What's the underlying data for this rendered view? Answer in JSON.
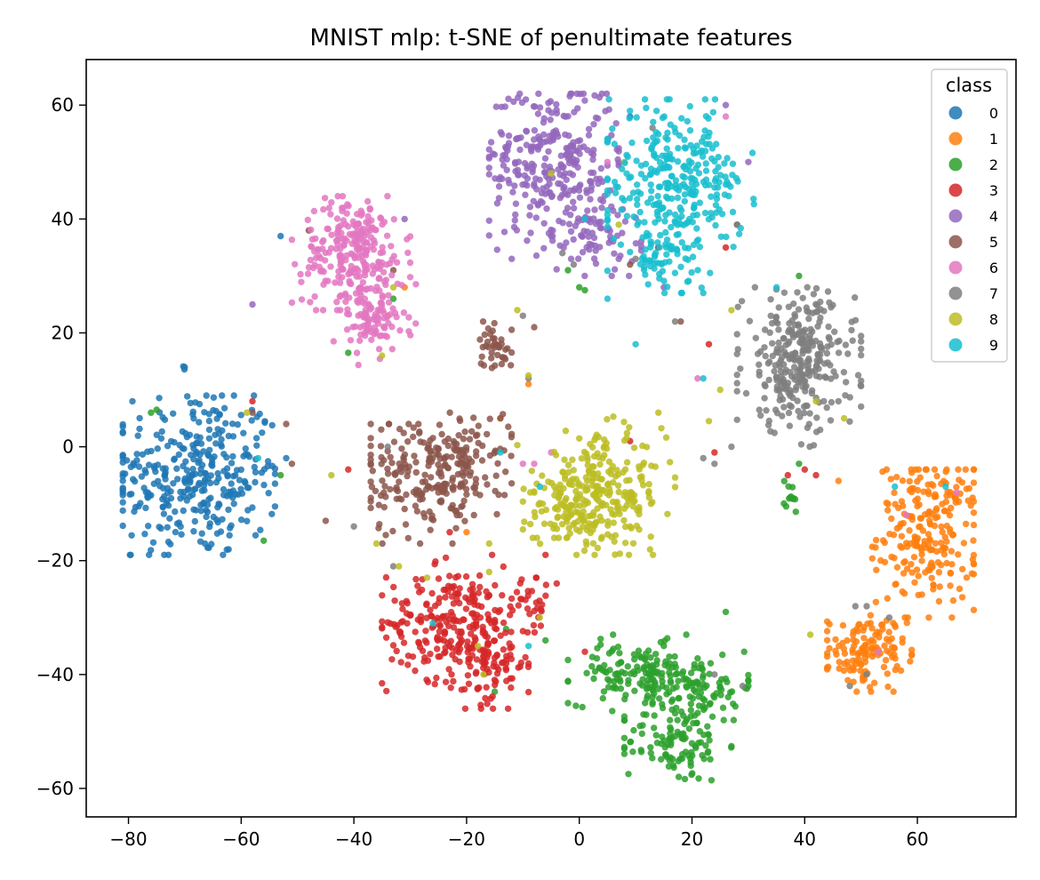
{
  "chart_data": {
    "type": "scatter",
    "title": "MNIST mlp: t-SNE of penultimate features",
    "xlabel": "",
    "ylabel": "",
    "xlim": [
      -87.5,
      77.5
    ],
    "ylim": [
      -65,
      68
    ],
    "x_ticks": [
      -80,
      -60,
      -40,
      -20,
      0,
      20,
      40,
      60
    ],
    "y_ticks": [
      -60,
      -40,
      -20,
      0,
      20,
      40,
      60
    ],
    "x_tick_labels": [
      "−80",
      "−60",
      "−40",
      "−20",
      "0",
      "20",
      "40",
      "60"
    ],
    "y_tick_labels": [
      "−60",
      "−40",
      "−20",
      "0",
      "20",
      "40",
      "60"
    ],
    "grid": false,
    "legend": {
      "title": "class",
      "placement": "top-right"
    },
    "series": [
      {
        "name": "0",
        "color": "#1f77b4",
        "clusters": [
          {
            "cx": -68,
            "cy": -5,
            "sx": 7.5,
            "sy": 7.5,
            "n": 340,
            "xr": [
              -81,
              -54
            ],
            "yr": [
              -19,
              9
            ]
          },
          {
            "cx": -70,
            "cy": 13.8,
            "sx": 0.3,
            "sy": 0.3,
            "n": 3
          }
        ],
        "points": [
          [
            -53,
            37
          ],
          [
            9,
            58
          ],
          [
            -52,
            -2
          ]
        ]
      },
      {
        "name": "1",
        "color": "#ff7f0e",
        "clusters": [
          {
            "cx": 62,
            "cy": -15,
            "sx": 4.5,
            "sy": 6.5,
            "n": 230,
            "xr": [
              52,
              70
            ],
            "yr": [
              -30,
              -4
            ]
          },
          {
            "cx": 51,
            "cy": -36,
            "sx": 3.5,
            "sy": 3.2,
            "n": 130,
            "xr": [
              44,
              59
            ],
            "yr": [
              -43,
              -27
            ]
          }
        ],
        "points": [
          [
            -34,
            23
          ],
          [
            -9,
            11
          ],
          [
            -14,
            5
          ],
          [
            46,
            -6
          ],
          [
            -20,
            -15
          ],
          [
            -31,
            28
          ]
        ]
      },
      {
        "name": "2",
        "color": "#2ca02c",
        "clusters": [
          {
            "cx": 10,
            "cy": -40,
            "sx": 6,
            "sy": 2.6,
            "n": 130,
            "xr": [
              -2,
              22
            ],
            "yr": [
              -49,
              -33
            ]
          },
          {
            "cx": 21,
            "cy": -42,
            "sx": 5,
            "sy": 3,
            "n": 90,
            "xr": [
              13,
              30
            ],
            "yr": [
              -48,
              -36
            ]
          },
          {
            "cx": 17,
            "cy": -52,
            "sx": 4.5,
            "sy": 3.5,
            "n": 110,
            "xr": [
              8,
              27
            ],
            "yr": [
              -59,
              -45
            ]
          },
          {
            "cx": 37,
            "cy": -9,
            "sx": 1.3,
            "sy": 1.5,
            "n": 12,
            "xr": [
              34,
              40
            ],
            "yr": [
              -12,
              -6
            ]
          }
        ],
        "points": [
          [
            -75,
            6.5
          ],
          [
            -53,
            -5
          ],
          [
            -56,
            -16.5
          ],
          [
            -41,
            16.5
          ],
          [
            -33,
            26
          ],
          [
            -2,
            31
          ],
          [
            0,
            28
          ],
          [
            1,
            27.5
          ],
          [
            -15,
            -43
          ],
          [
            -13,
            -32
          ],
          [
            -6,
            -34
          ],
          [
            6,
            -33
          ],
          [
            15,
            -35
          ],
          [
            19,
            -33
          ],
          [
            26,
            -29
          ],
          [
            30,
            -41
          ],
          [
            39,
            30
          ],
          [
            39,
            -3
          ],
          [
            -76,
            6
          ]
        ]
      },
      {
        "name": "3",
        "color": "#d62728",
        "clusters": [
          {
            "cx": -22,
            "cy": -31,
            "sx": 6,
            "sy": 5,
            "n": 250,
            "xr": [
              -35,
              -8
            ],
            "yr": [
              -44,
              -19
            ]
          },
          {
            "cx": -15,
            "cy": -38,
            "sx": 3,
            "sy": 4,
            "n": 70,
            "xr": [
              -22,
              -9
            ],
            "yr": [
              -46,
              -29
            ]
          },
          {
            "cx": -8,
            "cy": -28,
            "sx": 2,
            "sy": 2.2,
            "n": 25,
            "xr": [
              -12,
              -5
            ],
            "yr": [
              -34,
              -23
            ]
          }
        ],
        "points": [
          [
            -58,
            8
          ],
          [
            -41,
            -4
          ],
          [
            -23,
            -15
          ],
          [
            -6,
            -19
          ],
          [
            -4,
            -24
          ],
          [
            9,
            1
          ],
          [
            23,
            18
          ],
          [
            24,
            -1
          ],
          [
            26,
            35
          ],
          [
            40,
            -4
          ],
          [
            42,
            -5
          ],
          [
            37,
            -5
          ],
          [
            1,
            -36
          ]
        ]
      },
      {
        "name": "4",
        "color": "#9467bd",
        "clusters": [
          {
            "cx": -5,
            "cy": 50,
            "sx": 6,
            "sy": 7,
            "n": 290,
            "xr": [
              -16,
              7
            ],
            "yr": [
              33,
              62
            ]
          },
          {
            "cx": 3,
            "cy": 38,
            "sx": 4,
            "sy": 4,
            "n": 70,
            "xr": [
              -5,
              11
            ],
            "yr": [
              30,
              45
            ]
          }
        ],
        "points": [
          [
            -31,
            40
          ],
          [
            15,
            28
          ],
          [
            -58,
            25
          ],
          [
            26,
            60
          ],
          [
            30,
            50
          ]
        ]
      },
      {
        "name": "5",
        "color": "#8c564b",
        "clusters": [
          {
            "cx": -29,
            "cy": -5,
            "sx": 5,
            "sy": 5.5,
            "n": 170,
            "xr": [
              -37,
              -20
            ],
            "yr": [
              -17,
              4
            ]
          },
          {
            "cx": -19,
            "cy": -3,
            "sx": 3.5,
            "sy": 4.5,
            "n": 100,
            "xr": [
              -25,
              -12
            ],
            "yr": [
              -12,
              6
            ]
          },
          {
            "cx": -15,
            "cy": 18,
            "sx": 1.6,
            "sy": 2.2,
            "n": 40,
            "xr": [
              -19,
              -12
            ],
            "yr": [
              12,
              22
            ]
          }
        ],
        "points": [
          [
            -52,
            4
          ],
          [
            -51,
            -3
          ],
          [
            -45,
            -13
          ],
          [
            -58,
            6
          ],
          [
            -14,
            5
          ],
          [
            -8,
            21
          ],
          [
            18,
            22
          ],
          [
            14,
            35
          ],
          [
            9,
            32
          ],
          [
            28,
            39
          ],
          [
            -33,
            31
          ],
          [
            -48,
            38
          ]
        ]
      },
      {
        "name": "6",
        "color": "#e377c2",
        "clusters": [
          {
            "cx": -40,
            "cy": 34,
            "sx": 4.5,
            "sy": 5,
            "n": 250,
            "xr": [
              -51,
              -30
            ],
            "yr": [
              24,
              44
            ]
          },
          {
            "cx": -37,
            "cy": 22,
            "sx": 3.5,
            "sy": 3,
            "n": 90,
            "xr": [
              -44,
              -29
            ],
            "yr": [
              14,
              29
            ]
          }
        ],
        "points": [
          [
            -8,
            -3
          ],
          [
            -10,
            -3
          ],
          [
            -5,
            -1
          ],
          [
            67,
            -8
          ],
          [
            21,
            12
          ],
          [
            5,
            50
          ],
          [
            53,
            -36
          ],
          [
            58,
            -12
          ],
          [
            26,
            58
          ]
        ]
      },
      {
        "name": "7",
        "color": "#7f7f7f",
        "clusters": [
          {
            "cx": 39,
            "cy": 15,
            "sx": 5,
            "sy": 6,
            "n": 300,
            "xr": [
              28,
              50
            ],
            "yr": [
              0,
              28
            ]
          }
        ],
        "points": [
          [
            -10,
            23
          ],
          [
            -9,
            12
          ],
          [
            -40,
            -14
          ],
          [
            -33,
            -21
          ],
          [
            -34,
            0
          ],
          [
            -1,
            32
          ],
          [
            -3,
            34
          ],
          [
            10,
            33
          ],
          [
            13,
            56
          ],
          [
            17,
            22
          ],
          [
            28,
            39
          ],
          [
            49,
            -28
          ],
          [
            51,
            -28
          ],
          [
            48,
            -42
          ],
          [
            51,
            -40
          ],
          [
            55,
            -30
          ],
          [
            24,
            -3
          ],
          [
            22,
            -2
          ],
          [
            27,
            0
          ],
          [
            24,
            -40
          ],
          [
            29,
            -42
          ],
          [
            46,
            8
          ],
          [
            34,
            23
          ]
        ]
      },
      {
        "name": "8",
        "color": "#bcbd22",
        "clusters": [
          {
            "cx": 4,
            "cy": -8,
            "sx": 5.5,
            "sy": 5,
            "n": 250,
            "xr": [
              -11,
              17
            ],
            "yr": [
              -19,
              6
            ]
          },
          {
            "cx": -3,
            "cy": -12,
            "sx": 4,
            "sy": 2.5,
            "n": 60,
            "xr": [
              -10,
              5
            ],
            "yr": [
              -16,
              -6
            ]
          }
        ],
        "points": [
          [
            -35,
            16
          ],
          [
            -33,
            28
          ],
          [
            -36,
            -17
          ],
          [
            -32,
            -21
          ],
          [
            -27,
            -23
          ],
          [
            -18,
            -35
          ],
          [
            -16,
            -22
          ],
          [
            -17,
            -40
          ],
          [
            -7,
            -30
          ],
          [
            -11,
            24
          ],
          [
            -9,
            12.5
          ],
          [
            -5,
            48
          ],
          [
            7,
            39
          ],
          [
            8,
            50
          ],
          [
            23,
            4.5
          ],
          [
            25,
            10
          ],
          [
            27,
            24
          ],
          [
            42,
            8
          ],
          [
            47,
            5
          ],
          [
            41,
            -33
          ],
          [
            -44,
            -5
          ],
          [
            -59,
            6
          ],
          [
            -16,
            -17
          ]
        ]
      },
      {
        "name": "9",
        "color": "#17becf",
        "clusters": [
          {
            "cx": 17,
            "cy": 46,
            "sx": 6,
            "sy": 6.5,
            "n": 300,
            "xr": [
              5,
              31
            ],
            "yr": [
              27,
              61
            ]
          },
          {
            "cx": 15,
            "cy": 33,
            "sx": 3,
            "sy": 3,
            "n": 50,
            "xr": [
              9,
              22
            ],
            "yr": [
              27,
              40
            ]
          }
        ],
        "points": [
          [
            -57,
            -2
          ],
          [
            -14,
            -1
          ],
          [
            -7,
            -7
          ],
          [
            -26,
            -31
          ],
          [
            -9,
            -35
          ],
          [
            1,
            40
          ],
          [
            5,
            26
          ],
          [
            10,
            18
          ],
          [
            22,
            12
          ],
          [
            35,
            28
          ],
          [
            56,
            -7
          ],
          [
            65,
            -7
          ]
        ]
      }
    ]
  }
}
